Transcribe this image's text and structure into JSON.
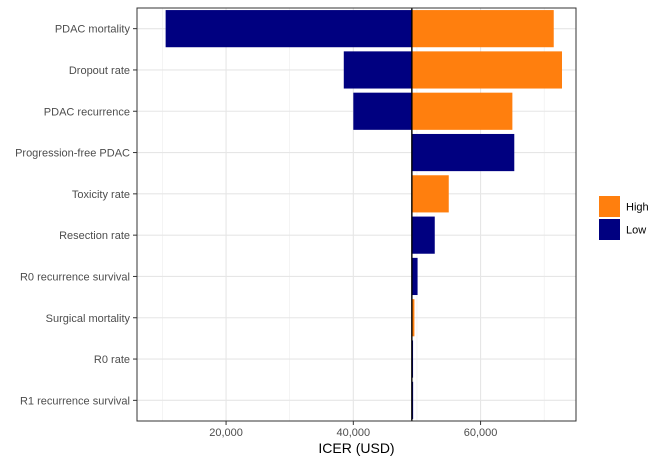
{
  "chart_data": {
    "type": "bar",
    "orientation": "horizontal",
    "chart_style": "tornado",
    "xlabel": "ICER (USD)",
    "ylabel": "",
    "xlim": [
      6000,
      75000
    ],
    "x_ticks": [
      20000,
      40000,
      60000
    ],
    "x_tick_labels": [
      "20,000",
      "40,000",
      "60,000"
    ],
    "baseline": 49200,
    "grid": true,
    "legend_position": "right",
    "categories": [
      "PDAC mortality",
      "Dropout rate",
      "PDAC recurrence",
      "Progression-free PDAC",
      "Toxicity rate",
      "Resection rate",
      "R0 recurrence survival",
      "Surgical mortality",
      "R0 rate",
      "R1 recurrence survival"
    ],
    "series": [
      {
        "name": "High",
        "color": "#FF7F0E",
        "values": [
          71500,
          72800,
          65000,
          null,
          55000,
          null,
          null,
          49600,
          null,
          null
        ]
      },
      {
        "name": "Low",
        "color": "#000080",
        "values": [
          10500,
          38500,
          40000,
          65300,
          null,
          52800,
          50100,
          null,
          49350,
          49400
        ]
      }
    ]
  }
}
